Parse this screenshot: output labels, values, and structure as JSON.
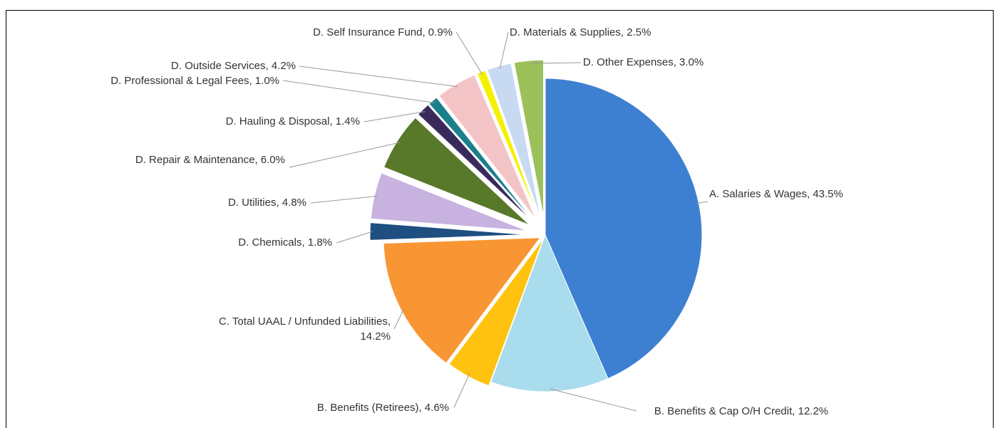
{
  "chart_data": {
    "type": "pie",
    "categories": [
      "A. Salaries & Wages",
      "B. Benefits & Cap O/H Credit",
      "B. Benefits (Retirees)",
      "C. Total UAAL / Unfunded Liabilities",
      "D. Chemicals",
      "D. Utilities",
      "D. Repair & Maintenance",
      "D. Hauling & Disposal",
      "D. Professional & Legal Fees",
      "D. Outside Services",
      "D. Self Insurance Fund",
      "D. Materials & Supplies",
      "D. Other Expenses"
    ],
    "values": [
      43.5,
      12.2,
      4.6,
      14.2,
      1.8,
      4.8,
      6.0,
      1.4,
      1.0,
      4.2,
      0.9,
      2.5,
      3.0
    ],
    "value_labels": [
      "A. Salaries & Wages, 43.5%",
      "B. Benefits & Cap O/H Credit, 12.2%",
      "B. Benefits (Retirees), 4.6%",
      "C. Total UAAL / Unfunded Liabilities, 14.2%",
      "D. Chemicals, 1.8%",
      "D. Utilities, 4.8%",
      "D. Repair & Maintenance, 6.0%",
      "D. Hauling & Disposal, 1.4%",
      "D. Professional & Legal Fees, 1.0%",
      "D. Outside Services, 4.2%",
      "D. Self Insurance Fund, 0.9%",
      "D. Materials & Supplies, 2.5%",
      "D. Other Expenses, 3.0%"
    ],
    "colors": [
      "#3d80d2",
      "#a9dcec",
      "#ffc20e",
      "#f79633",
      "#1f4e80",
      "#c8b2e0",
      "#58782a",
      "#3a2a5c",
      "#1b7f8c",
      "#f3c4c6",
      "#f5f000",
      "#c7daf2",
      "#9cc05a"
    ]
  }
}
